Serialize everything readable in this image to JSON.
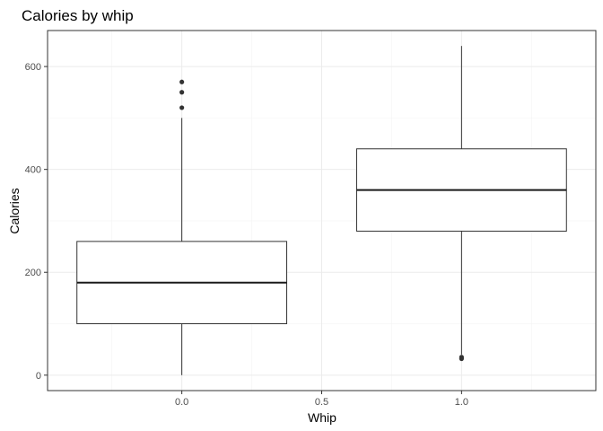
{
  "chart_data": {
    "type": "boxplot",
    "title": "Calories by whip",
    "xlabel": "Whip",
    "ylabel": "Calories",
    "x_ticks": [
      "0.0",
      "0.5",
      "1.0"
    ],
    "y_ticks": [
      "0",
      "200",
      "400",
      "600"
    ],
    "xlim": [
      -0.48,
      1.48
    ],
    "ylim": [
      -30,
      670
    ],
    "grid": true,
    "legend": "none",
    "boxes": [
      {
        "x": 0,
        "min": 0,
        "q1": 100,
        "median": 180,
        "q3": 260,
        "max": 500,
        "outliers": [
          520,
          550,
          570
        ]
      },
      {
        "x": 1,
        "min": 40,
        "q1": 280,
        "median": 360,
        "q3": 440,
        "max": 640,
        "outliers": [
          32,
          35
        ]
      }
    ]
  }
}
